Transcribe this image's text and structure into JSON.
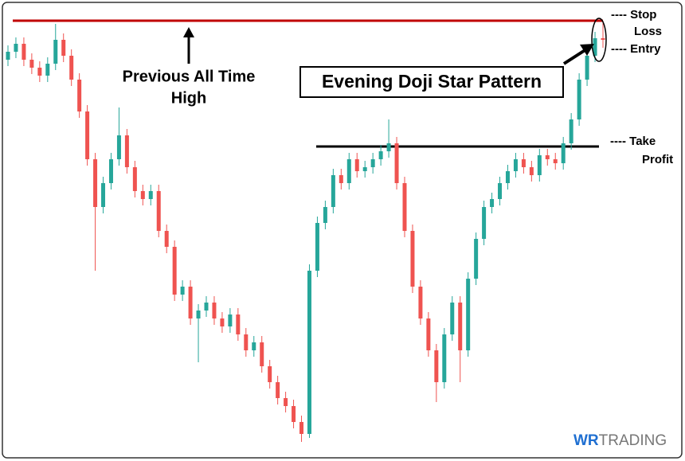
{
  "chart_data": {
    "type": "candlestick",
    "ylim": [
      0,
      571
    ],
    "up_color": "#26a69a",
    "down_color": "#ef5350",
    "open": [
      500,
      510,
      520,
      500,
      490,
      480,
      495,
      525,
      505,
      475,
      435,
      375,
      315,
      345,
      375,
      405,
      365,
      335,
      325,
      335,
      285,
      265,
      205,
      215,
      175,
      185,
      195,
      175,
      165,
      180,
      155,
      135,
      145,
      115,
      95,
      75,
      65,
      45,
      30,
      235,
      295,
      315,
      355,
      345,
      375,
      360,
      365,
      375,
      385,
      395,
      345,
      285,
      215,
      175,
      135,
      95,
      155,
      195,
      135,
      225,
      275,
      315,
      325,
      345,
      360,
      375,
      365,
      355,
      380,
      375,
      370,
      395,
      425,
      475,
      505,
      527
    ],
    "high": [
      518,
      528,
      528,
      508,
      498,
      503,
      545,
      533,
      513,
      483,
      443,
      383,
      353,
      383,
      440,
      413,
      373,
      343,
      343,
      343,
      293,
      273,
      223,
      223,
      193,
      203,
      203,
      183,
      188,
      188,
      163,
      153,
      153,
      123,
      103,
      83,
      73,
      53,
      243,
      303,
      323,
      363,
      363,
      383,
      383,
      373,
      383,
      393,
      425,
      403,
      353,
      293,
      223,
      183,
      143,
      163,
      203,
      203,
      233,
      283,
      323,
      333,
      353,
      368,
      383,
      383,
      373,
      388,
      388,
      383,
      403,
      433,
      483,
      513,
      535,
      549
    ],
    "low": [
      492,
      502,
      492,
      482,
      472,
      472,
      487,
      497,
      467,
      427,
      367,
      235,
      307,
      337,
      367,
      357,
      327,
      317,
      317,
      277,
      257,
      197,
      197,
      167,
      120,
      177,
      167,
      157,
      157,
      147,
      127,
      127,
      107,
      87,
      67,
      57,
      37,
      20,
      25,
      227,
      287,
      307,
      337,
      337,
      352,
      352,
      357,
      367,
      377,
      337,
      277,
      207,
      167,
      127,
      70,
      87,
      147,
      95,
      127,
      217,
      267,
      307,
      317,
      337,
      352,
      357,
      347,
      347,
      367,
      362,
      362,
      387,
      417,
      467,
      497,
      515
    ],
    "close": [
      510,
      520,
      500,
      490,
      480,
      495,
      525,
      505,
      475,
      435,
      375,
      315,
      345,
      375,
      405,
      365,
      335,
      325,
      335,
      285,
      265,
      205,
      215,
      175,
      185,
      195,
      175,
      165,
      180,
      155,
      135,
      145,
      115,
      95,
      75,
      65,
      45,
      30,
      235,
      295,
      315,
      355,
      345,
      375,
      360,
      365,
      375,
      385,
      395,
      345,
      285,
      215,
      175,
      135,
      95,
      155,
      195,
      135,
      225,
      275,
      315,
      325,
      345,
      360,
      375,
      365,
      355,
      380,
      375,
      370,
      395,
      425,
      475,
      505,
      527,
      525
    ],
    "ath_line": {
      "value": 549,
      "color": "#c00000"
    },
    "take_profit_line": {
      "value": 391,
      "color": "#000000"
    },
    "annotations": {
      "ath": [
        "Previous All Time",
        "High"
      ],
      "pattern": "Evening Doji Star Pattern",
      "stop_loss": [
        "---- Stop",
        "Loss"
      ],
      "entry": "---- Entry",
      "take_profit": [
        "---- Take",
        "Profit"
      ]
    },
    "logo": [
      "WR",
      "TRADING"
    ]
  }
}
